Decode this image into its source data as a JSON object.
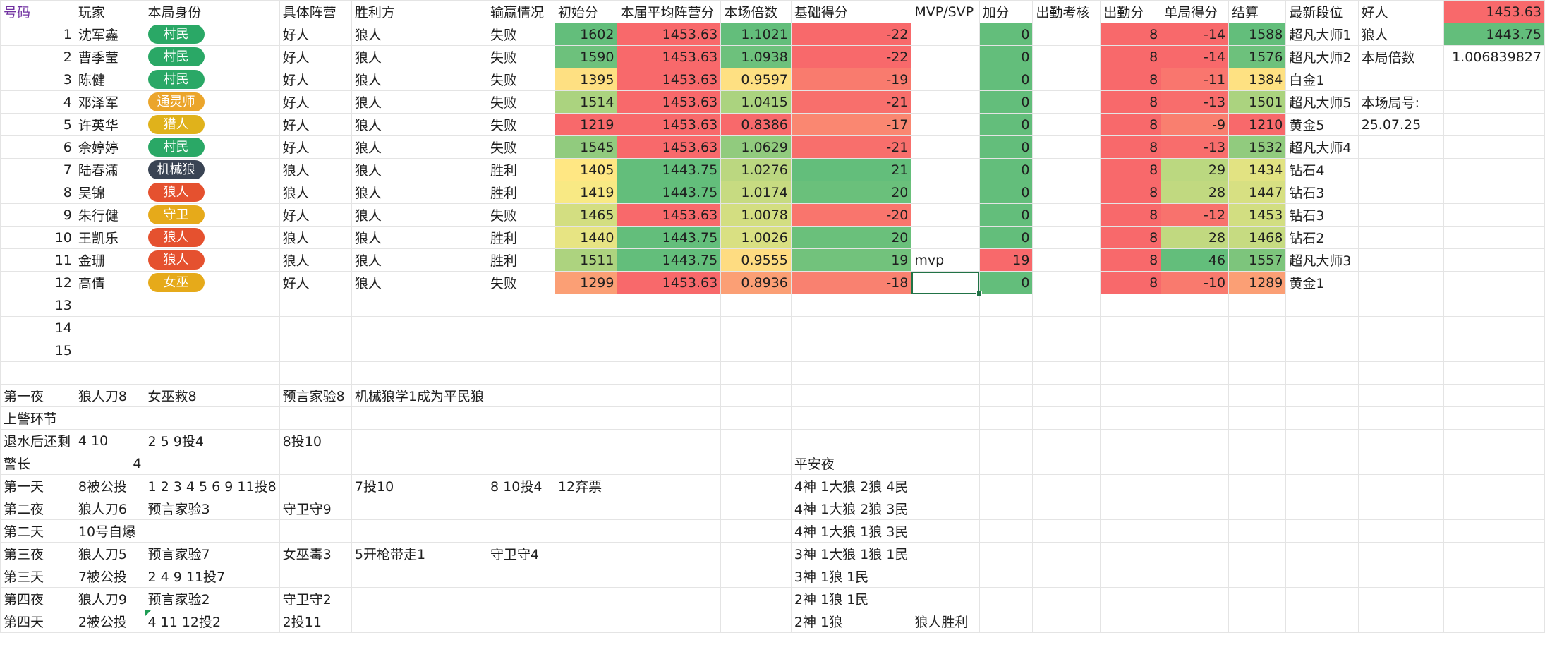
{
  "headers": [
    "号码",
    "玩家",
    "本局身份",
    "具体阵营",
    "胜利方",
    "输赢情况",
    "初始分",
    "本届平均阵营分",
    "本场倍数",
    "基础得分",
    "MVP/SVP",
    "加分",
    "出勤考核",
    "出勤分",
    "单局得分",
    "结算",
    "最新段位",
    "好人",
    "1453.63"
  ],
  "role_colors": {
    "村民": "#2aa866",
    "通灵师": "#eba52b",
    "猎人": "#e0b21b",
    "机械狼": "#3a4454",
    "狼人": "#e5512f",
    "守卫": "#e6aa1a",
    "女巫": "#e6aa1a"
  },
  "players": [
    {
      "no": "1",
      "name": "沈军鑫",
      "role": "村民",
      "camp": "好人",
      "winner": "狼人",
      "result": "失败",
      "init": "1602",
      "avg": "1453.63",
      "mult": "1.1021",
      "base": "-22",
      "mvp": "",
      "bonus": "0",
      "attend": "",
      "att_pts": "8",
      "single": "-14",
      "final": "1588",
      "rank": "超凡大师1"
    },
    {
      "no": "2",
      "name": "曹季莹",
      "role": "村民",
      "camp": "好人",
      "winner": "狼人",
      "result": "失败",
      "init": "1590",
      "avg": "1453.63",
      "mult": "1.0938",
      "base": "-22",
      "mvp": "",
      "bonus": "0",
      "attend": "",
      "att_pts": "8",
      "single": "-14",
      "final": "1576",
      "rank": "超凡大师2"
    },
    {
      "no": "3",
      "name": "陈健",
      "role": "村民",
      "camp": "好人",
      "winner": "狼人",
      "result": "失败",
      "init": "1395",
      "avg": "1453.63",
      "mult": "0.9597",
      "base": "-19",
      "mvp": "",
      "bonus": "0",
      "attend": "",
      "att_pts": "8",
      "single": "-11",
      "final": "1384",
      "rank": "白金1"
    },
    {
      "no": "4",
      "name": "邓泽军",
      "role": "通灵师",
      "camp": "好人",
      "winner": "狼人",
      "result": "失败",
      "init": "1514",
      "avg": "1453.63",
      "mult": "1.0415",
      "base": "-21",
      "mvp": "",
      "bonus": "0",
      "attend": "",
      "att_pts": "8",
      "single": "-13",
      "final": "1501",
      "rank": "超凡大师5"
    },
    {
      "no": "5",
      "name": "许英华",
      "role": "猎人",
      "camp": "好人",
      "winner": "狼人",
      "result": "失败",
      "init": "1219",
      "avg": "1453.63",
      "mult": "0.8386",
      "base": "-17",
      "mvp": "",
      "bonus": "0",
      "attend": "",
      "att_pts": "8",
      "single": "-9",
      "final": "1210",
      "rank": "黄金5"
    },
    {
      "no": "6",
      "name": "佘婷婷",
      "role": "村民",
      "camp": "好人",
      "winner": "狼人",
      "result": "失败",
      "init": "1545",
      "avg": "1453.63",
      "mult": "1.0629",
      "base": "-21",
      "mvp": "",
      "bonus": "0",
      "attend": "",
      "att_pts": "8",
      "single": "-13",
      "final": "1532",
      "rank": "超凡大师4"
    },
    {
      "no": "7",
      "name": "陆春潇",
      "role": "机械狼",
      "camp": "狼人",
      "winner": "狼人",
      "result": "胜利",
      "init": "1405",
      "avg": "1443.75",
      "mult": "1.0276",
      "base": "21",
      "mvp": "",
      "bonus": "0",
      "attend": "",
      "att_pts": "8",
      "single": "29",
      "final": "1434",
      "rank": "钻石4"
    },
    {
      "no": "8",
      "name": "吴锦",
      "role": "狼人",
      "camp": "狼人",
      "winner": "狼人",
      "result": "胜利",
      "init": "1419",
      "avg": "1443.75",
      "mult": "1.0174",
      "base": "20",
      "mvp": "",
      "bonus": "0",
      "attend": "",
      "att_pts": "8",
      "single": "28",
      "final": "1447",
      "rank": "钻石3"
    },
    {
      "no": "9",
      "name": "朱行健",
      "role": "守卫",
      "camp": "好人",
      "winner": "狼人",
      "result": "失败",
      "init": "1465",
      "avg": "1453.63",
      "mult": "1.0078",
      "base": "-20",
      "mvp": "",
      "bonus": "0",
      "attend": "",
      "att_pts": "8",
      "single": "-12",
      "final": "1453",
      "rank": "钻石3"
    },
    {
      "no": "10",
      "name": "王凯乐",
      "role": "狼人",
      "camp": "狼人",
      "winner": "狼人",
      "result": "胜利",
      "init": "1440",
      "avg": "1443.75",
      "mult": "1.0026",
      "base": "20",
      "mvp": "",
      "bonus": "0",
      "attend": "",
      "att_pts": "8",
      "single": "28",
      "final": "1468",
      "rank": "钻石2"
    },
    {
      "no": "11",
      "name": "金珊",
      "role": "狼人",
      "camp": "狼人",
      "winner": "狼人",
      "result": "胜利",
      "init": "1511",
      "avg": "1443.75",
      "mult": "0.9555",
      "base": "19",
      "mvp": "mvp",
      "bonus": "19",
      "attend": "",
      "att_pts": "8",
      "single": "46",
      "final": "1557",
      "rank": "超凡大师3"
    },
    {
      "no": "12",
      "name": "高倩",
      "role": "女巫",
      "camp": "好人",
      "winner": "狼人",
      "result": "失败",
      "init": "1299",
      "avg": "1453.63",
      "mult": "0.8936",
      "base": "-18",
      "mvp": "",
      "bonus": "0",
      "attend": "",
      "att_pts": "8",
      "single": "-10",
      "final": "1289",
      "rank": "黄金1"
    }
  ],
  "empty_numbers": [
    "13",
    "14",
    "15"
  ],
  "side": {
    "wolf_label": "狼人",
    "wolf_value": "1443.75",
    "mult_label": "本局倍数",
    "mult_value": "1.006839827",
    "game_label": "本场局号:",
    "game_value": "25.07.25"
  },
  "colors": {
    "red": "#f8696b",
    "green": "#63be7b",
    "yellow": "#ffeb84",
    "selection": "#217346"
  },
  "notes": [
    {
      "c0": "第一夜",
      "c1": "狼人刀8",
      "c2": "女巫救8",
      "c3": "预言家验8",
      "c4": "机械狼学1成为平民狼",
      "c5": "",
      "c6": "",
      "c9": ""
    },
    {
      "c0": "上警环节",
      "c1": "",
      "c2": "",
      "c3": "",
      "c4": "",
      "c5": "",
      "c6": "",
      "c9": ""
    },
    {
      "c0": "退水后还剩",
      "c1": "4 10",
      "c2": "2 5 9投4",
      "c3": "8投10",
      "c4": "",
      "c5": "",
      "c6": "",
      "c9": ""
    },
    {
      "c0": "警长",
      "c1": "4",
      "c2": "",
      "c3": "",
      "c4": "",
      "c5": "",
      "c6": "",
      "c9": "平安夜"
    },
    {
      "c0": "第一天",
      "c1": "8被公投",
      "c2": "1 2 3 4 5 6 9 11投8",
      "c3": "",
      "c4": "7投10",
      "c5": "8 10投4",
      "c6": "12弃票",
      "c9": "4神 1大狼 2狼 4民"
    },
    {
      "c0": "第二夜",
      "c1": "狼人刀6",
      "c2": "预言家验3",
      "c3": "守卫守9",
      "c4": "",
      "c5": "",
      "c6": "",
      "c9": "4神 1大狼 2狼 3民"
    },
    {
      "c0": "第二天",
      "c1": "10号自爆",
      "c2": "",
      "c3": "",
      "c4": "",
      "c5": "",
      "c6": "",
      "c9": "4神 1大狼 1狼 3民"
    },
    {
      "c0": "第三夜",
      "c1": "狼人刀5",
      "c2": "预言家验7",
      "c3": "女巫毒3",
      "c4": "5开枪带走1",
      "c5": "守卫守4",
      "c6": "",
      "c9": "3神 1大狼 1狼 1民"
    },
    {
      "c0": "第三天",
      "c1": "7被公投",
      "c2": "2 4 9 11投7",
      "c3": "",
      "c4": "",
      "c5": "",
      "c6": "",
      "c9": "3神 1狼 1民"
    },
    {
      "c0": "第四夜",
      "c1": "狼人刀9",
      "c2": "预言家验2",
      "c3": "守卫守2",
      "c4": "",
      "c5": "",
      "c6": "",
      "c9": "2神 1狼 1民"
    },
    {
      "c0": "第四天",
      "c1": "2被公投",
      "c2": "4 11 12投2",
      "c3": "2投11",
      "c4": "",
      "c5": "",
      "c6": "",
      "c9": "2神 1狼",
      "c10": "狼人胜利"
    }
  ]
}
